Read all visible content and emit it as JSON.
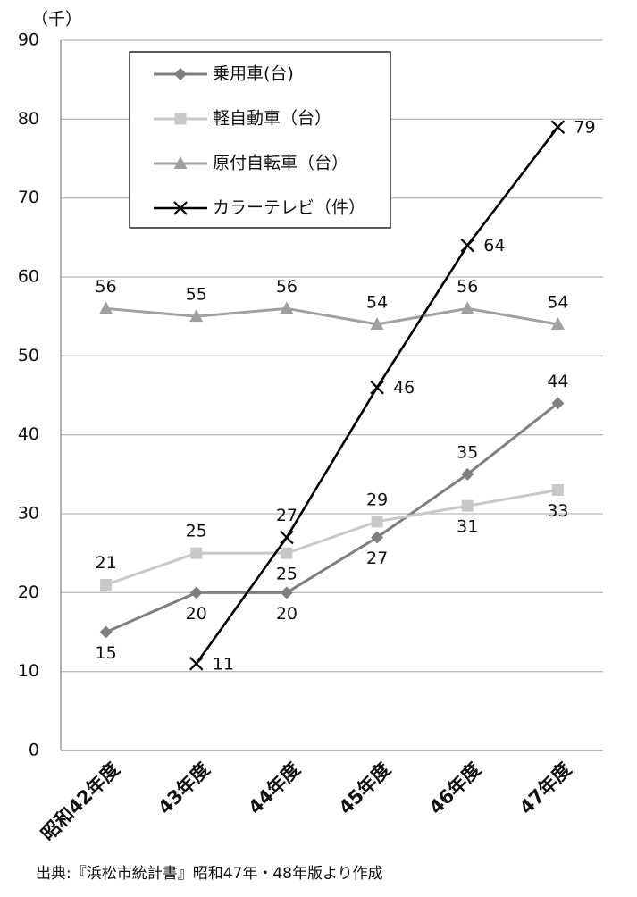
{
  "chart_data": {
    "type": "line",
    "unit_label": "（千）",
    "source": "出典:『浜松市統計書』昭和47年・48年版より作成",
    "categories": [
      "昭和42年度",
      "43年度",
      "44年度",
      "45年度",
      "46年度",
      "47年度"
    ],
    "series": [
      {
        "name": "乗用車(台)",
        "color": "#7f7f7f",
        "marker": "diamond",
        "values": [
          15,
          20,
          20,
          27,
          35,
          44
        ]
      },
      {
        "name": "軽自動車（台）",
        "color": "#c8c8c8",
        "marker": "square",
        "values": [
          21,
          25,
          25,
          29,
          31,
          33
        ]
      },
      {
        "name": "原付自転車（台）",
        "color": "#a0a0a0",
        "marker": "triangle",
        "values": [
          56,
          55,
          56,
          54,
          56,
          54
        ]
      },
      {
        "name": "カラーテレビ（件）",
        "color": "#000000",
        "marker": "x",
        "values": [
          null,
          11,
          27,
          46,
          64,
          79
        ]
      }
    ],
    "ylim": [
      0,
      90
    ],
    "yticks": [
      0,
      10,
      20,
      30,
      40,
      50,
      60,
      70,
      80,
      90
    ],
    "grid": true,
    "legend": "upper left"
  }
}
